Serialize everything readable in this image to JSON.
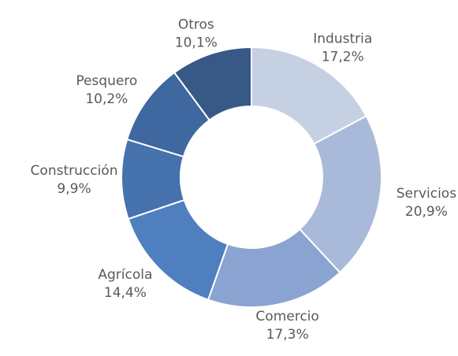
{
  "chart_data": {
    "type": "donut",
    "categories": [
      "Industria",
      "Servicios",
      "Comercio",
      "Agrícola",
      "Construcción",
      "Pesquero",
      "Otros"
    ],
    "values": [
      17.2,
      20.9,
      17.3,
      14.4,
      9.9,
      10.2,
      10.1
    ],
    "value_labels": [
      "17,2%",
      "20,9%",
      "17,3%",
      "14,4%",
      "9,9%",
      "10,2%",
      "10,1%"
    ],
    "colors": [
      "#c5d0e3",
      "#a9b9d9",
      "#8aa3d0",
      "#4f7fbf",
      "#4672ae",
      "#3f67a0",
      "#385985"
    ]
  }
}
